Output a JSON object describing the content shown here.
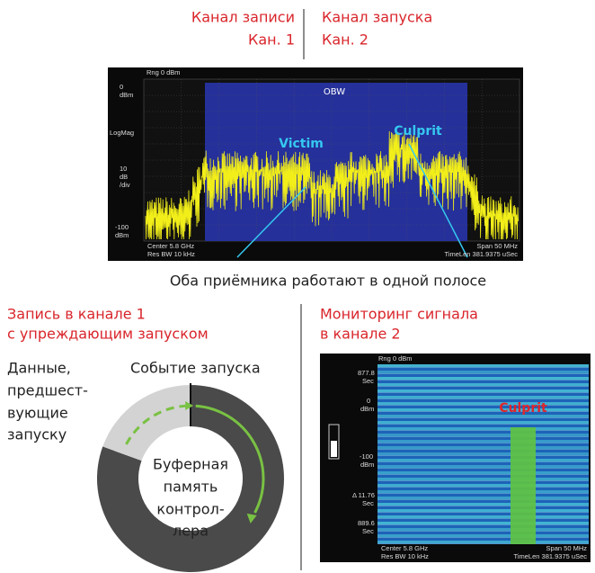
{
  "header": {
    "record_channel": {
      "title": "Канал записи",
      "channel": "Кан. 1"
    },
    "trigger_channel": {
      "title": "Канал запуска",
      "channel": "Кан. 2"
    }
  },
  "spectrum": {
    "range": "Rng 0 dBm",
    "y_labels": [
      "0",
      "dBm",
      "LogMag",
      "10",
      "dB",
      "/div",
      "-100",
      "dBm"
    ],
    "obw": "OBW",
    "victim": "Victim",
    "culprit": "Culprit",
    "footer": {
      "center": "Center 5.8 GHz",
      "res_bw": "Res BW 10 kHz",
      "span": "Span 50 MHz",
      "time_len": "TimeLen 381.9375 uSec"
    }
  },
  "caption": "Оба приёмника работают в одной полосе",
  "left_panel": {
    "title": [
      "Запись в канале 1",
      "с упреждающим запуском"
    ],
    "pretrigger_label": [
      "Данные,",
      "предшест-",
      "вующие",
      "запуску"
    ],
    "trigger_event": "Событие запуска",
    "buffer_label": [
      "Буферная",
      "память",
      "контрол-",
      "лера"
    ]
  },
  "right_panel": {
    "title": [
      "Мониторинг сигнала",
      "в канале 2"
    ],
    "spectrogram": {
      "range": "Rng 0 dBm",
      "y_labels": [
        "877.8",
        "Sec",
        "0",
        "dBm",
        "-100",
        "dBm",
        "Δ 11.76",
        "Sec",
        "889.6",
        "Sec"
      ],
      "culprit": "Culprit",
      "footer": {
        "center": "Center 5.8 GHz",
        "res_bw": "Res BW 10 kHz",
        "span": "Span 50 MHz",
        "time_len": "TimeLen 381.9375 uSec"
      }
    }
  }
}
